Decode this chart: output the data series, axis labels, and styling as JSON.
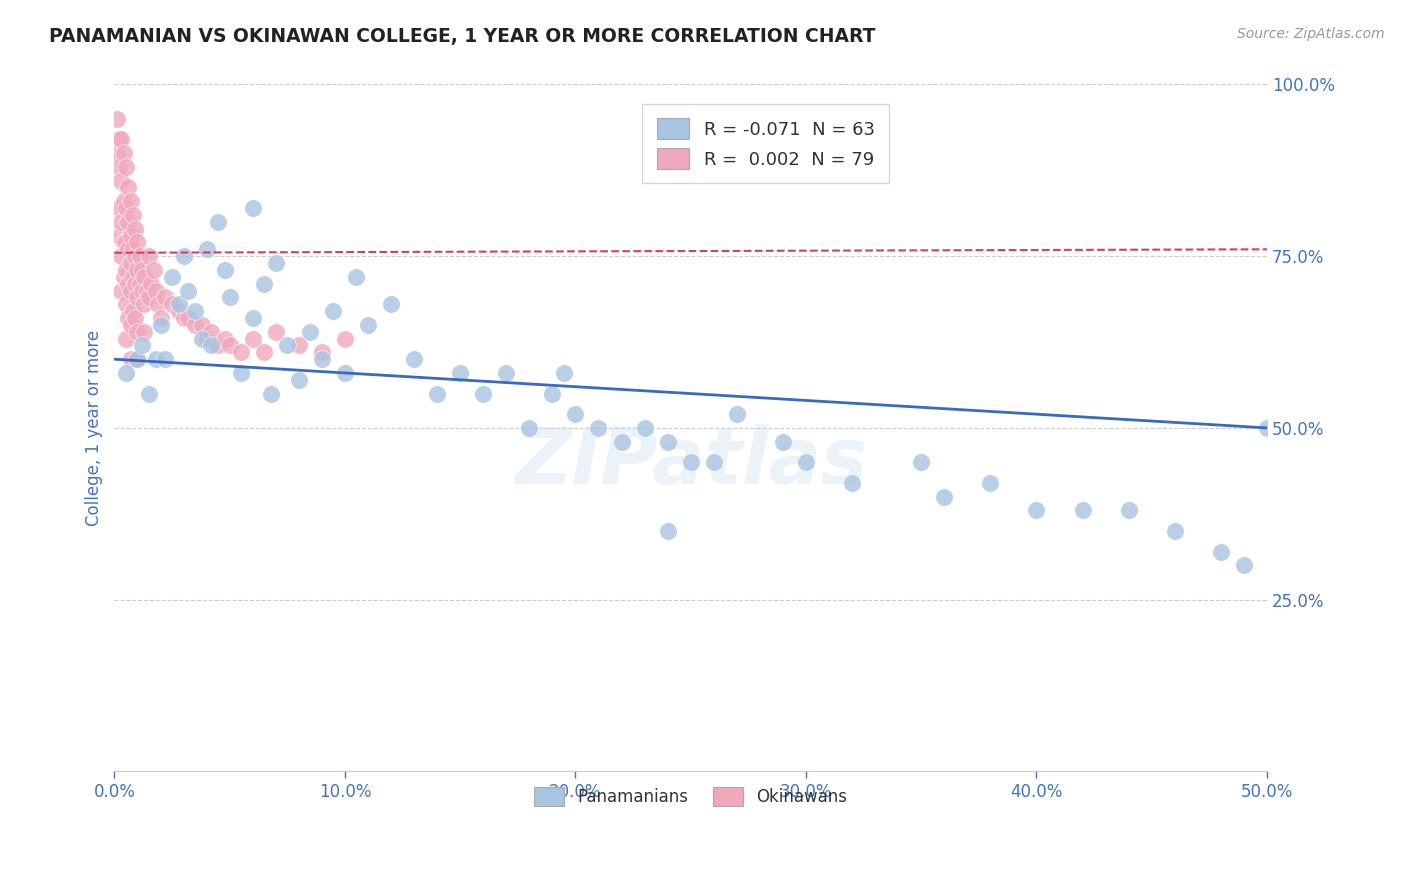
{
  "title": "PANAMANIAN VS OKINAWAN COLLEGE, 1 YEAR OR MORE CORRELATION CHART",
  "source_text": "Source: ZipAtlas.com",
  "ylabel": "College, 1 year or more",
  "xlim": [
    0.0,
    0.5
  ],
  "ylim": [
    0.0,
    1.0
  ],
  "xtick_labels": [
    "0.0%",
    "10.0%",
    "20.0%",
    "30.0%",
    "40.0%",
    "50.0%"
  ],
  "xtick_vals": [
    0.0,
    0.1,
    0.2,
    0.3,
    0.4,
    0.5
  ],
  "ytick_labels": [
    "25.0%",
    "50.0%",
    "75.0%",
    "100.0%"
  ],
  "ytick_vals": [
    0.25,
    0.5,
    0.75,
    1.0
  ],
  "blue_R": -0.071,
  "blue_N": 63,
  "pink_R": 0.002,
  "pink_N": 79,
  "blue_color": "#a8c4e0",
  "pink_color": "#f0a8bc",
  "blue_line_color": "#3a6abf",
  "pink_line_color": "#d04060",
  "grid_color": "#cccccc",
  "background_color": "#ffffff",
  "title_color": "#222222",
  "axis_label_color": "#4472c4",
  "tick_color": "#4472c4",
  "source_color": "#999999",
  "watermark": "ZIPatlas",
  "blue_line_y0": 0.6,
  "blue_line_y1": 0.5,
  "pink_line_y0": 0.755,
  "pink_line_y1": 0.76,
  "blue_scatter_x": [
    0.005,
    0.01,
    0.012,
    0.015,
    0.018,
    0.02,
    0.022,
    0.025,
    0.028,
    0.03,
    0.032,
    0.035,
    0.038,
    0.04,
    0.042,
    0.045,
    0.048,
    0.05,
    0.055,
    0.06,
    0.06,
    0.065,
    0.068,
    0.07,
    0.075,
    0.08,
    0.085,
    0.09,
    0.095,
    0.1,
    0.105,
    0.11,
    0.12,
    0.13,
    0.14,
    0.15,
    0.16,
    0.17,
    0.18,
    0.19,
    0.195,
    0.2,
    0.21,
    0.22,
    0.23,
    0.24,
    0.25,
    0.27,
    0.29,
    0.3,
    0.32,
    0.35,
    0.36,
    0.38,
    0.4,
    0.42,
    0.44,
    0.46,
    0.48,
    0.49,
    0.5,
    0.24,
    0.26
  ],
  "blue_scatter_y": [
    0.58,
    0.6,
    0.62,
    0.55,
    0.6,
    0.65,
    0.6,
    0.72,
    0.68,
    0.75,
    0.7,
    0.67,
    0.63,
    0.76,
    0.62,
    0.8,
    0.73,
    0.69,
    0.58,
    0.66,
    0.82,
    0.71,
    0.55,
    0.74,
    0.62,
    0.57,
    0.64,
    0.6,
    0.67,
    0.58,
    0.72,
    0.65,
    0.68,
    0.6,
    0.55,
    0.58,
    0.55,
    0.58,
    0.5,
    0.55,
    0.58,
    0.52,
    0.5,
    0.48,
    0.5,
    0.48,
    0.45,
    0.52,
    0.48,
    0.45,
    0.42,
    0.45,
    0.4,
    0.42,
    0.38,
    0.38,
    0.38,
    0.35,
    0.32,
    0.3,
    0.5,
    0.35,
    0.45
  ],
  "pink_scatter_x": [
    0.001,
    0.001,
    0.002,
    0.002,
    0.002,
    0.002,
    0.003,
    0.003,
    0.003,
    0.003,
    0.003,
    0.004,
    0.004,
    0.004,
    0.004,
    0.005,
    0.005,
    0.005,
    0.005,
    0.005,
    0.005,
    0.006,
    0.006,
    0.006,
    0.006,
    0.006,
    0.007,
    0.007,
    0.007,
    0.007,
    0.007,
    0.007,
    0.008,
    0.008,
    0.008,
    0.008,
    0.009,
    0.009,
    0.009,
    0.009,
    0.01,
    0.01,
    0.01,
    0.01,
    0.01,
    0.011,
    0.011,
    0.012,
    0.012,
    0.013,
    0.013,
    0.013,
    0.014,
    0.015,
    0.015,
    0.016,
    0.017,
    0.018,
    0.019,
    0.02,
    0.022,
    0.025,
    0.028,
    0.03,
    0.032,
    0.035,
    0.038,
    0.04,
    0.042,
    0.045,
    0.048,
    0.05,
    0.055,
    0.06,
    0.065,
    0.07,
    0.08,
    0.09,
    0.1
  ],
  "pink_scatter_y": [
    0.95,
    0.9,
    0.92,
    0.88,
    0.82,
    0.78,
    0.92,
    0.86,
    0.8,
    0.75,
    0.7,
    0.9,
    0.83,
    0.77,
    0.72,
    0.88,
    0.82,
    0.77,
    0.73,
    0.68,
    0.63,
    0.85,
    0.8,
    0.76,
    0.71,
    0.66,
    0.83,
    0.78,
    0.74,
    0.7,
    0.65,
    0.6,
    0.81,
    0.76,
    0.72,
    0.67,
    0.79,
    0.75,
    0.71,
    0.66,
    0.77,
    0.73,
    0.69,
    0.64,
    0.6,
    0.75,
    0.71,
    0.73,
    0.7,
    0.72,
    0.68,
    0.64,
    0.7,
    0.75,
    0.69,
    0.71,
    0.73,
    0.7,
    0.68,
    0.66,
    0.69,
    0.68,
    0.67,
    0.66,
    0.66,
    0.65,
    0.65,
    0.63,
    0.64,
    0.62,
    0.63,
    0.62,
    0.61,
    0.63,
    0.61,
    0.64,
    0.62,
    0.61,
    0.63
  ]
}
